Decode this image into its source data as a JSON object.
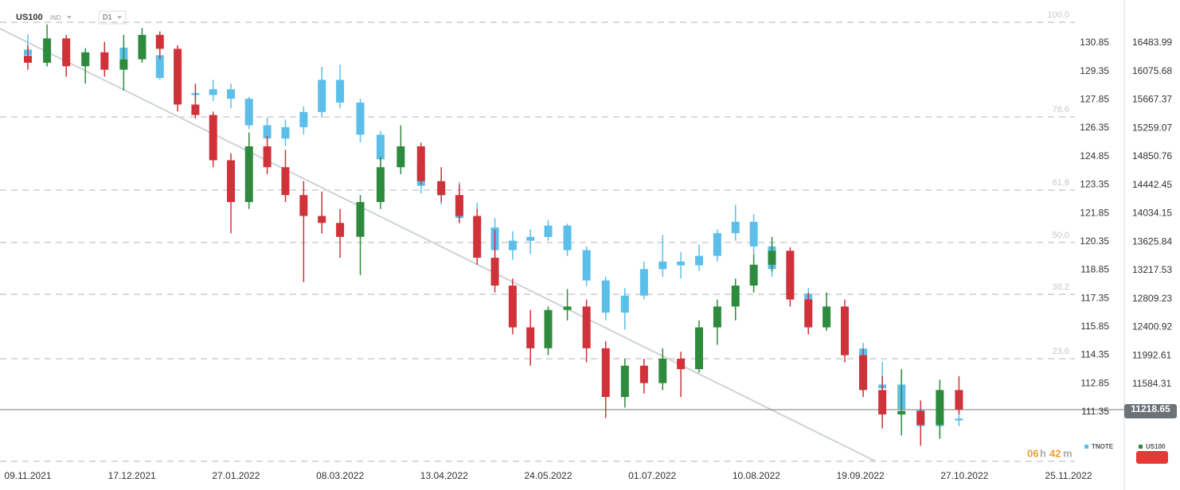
{
  "header": {
    "symbol": "US100",
    "market": "IND",
    "interval": "D1"
  },
  "chart_data": {
    "type": "candlestick",
    "x": [
      "09.11.2021",
      "16.11.2021",
      "23.11.2021",
      "30.11.2021",
      "07.12.2021",
      "14.12.2021",
      "21.12.2021",
      "28.12.2021",
      "04.01.2022",
      "11.01.2022",
      "18.01.2022",
      "25.01.2022",
      "01.02.2022",
      "08.02.2022",
      "15.02.2022",
      "22.02.2022",
      "01.03.2022",
      "08.03.2022",
      "15.03.2022",
      "22.03.2022",
      "29.03.2022",
      "05.04.2022",
      "12.04.2022",
      "19.04.2022",
      "26.04.2022",
      "03.05.2022",
      "10.05.2022",
      "17.05.2022",
      "24.05.2022",
      "31.05.2022",
      "07.06.2022",
      "14.06.2022",
      "21.06.2022",
      "28.06.2022",
      "05.07.2022",
      "12.07.2022",
      "19.07.2022",
      "26.07.2022",
      "02.08.2022",
      "09.08.2022",
      "16.08.2022",
      "23.08.2022",
      "30.08.2022",
      "06.09.2022",
      "13.09.2022",
      "20.09.2022",
      "27.09.2022",
      "04.10.2022",
      "11.10.2022",
      "18.10.2022",
      "25.10.2022"
    ],
    "xticks": [
      "09.11.2021",
      "17.12.2021",
      "27.01.2022",
      "08.03.2022",
      "13.04.2022",
      "24.05.2022",
      "01.07.2022",
      "10.08.2022",
      "19.09.2022",
      "27.10.2022",
      "25.11.2022"
    ],
    "ylim": [
      10362,
      17101
    ],
    "yticks": [
      16483.99,
      16075.68,
      15667.37,
      15259.07,
      14850.76,
      14442.45,
      14034.15,
      13625.84,
      13217.53,
      12809.23,
      12400.92,
      11992.61,
      11584.31
    ],
    "y2lim": [
      108.32,
      133.12
    ],
    "y2ticks": [
      130.85,
      129.35,
      127.85,
      126.35,
      124.85,
      123.35,
      121.85,
      120.35,
      118.85,
      117.35,
      115.85,
      114.35,
      112.85,
      111.35
    ],
    "last_price": 11218.65,
    "fib_levels": [
      {
        "value": 16781,
        "label": "100.0"
      },
      {
        "value": 15422,
        "label": "78.6"
      },
      {
        "value": 14371,
        "label": "61.8"
      },
      {
        "value": 13618,
        "label": "50.0"
      },
      {
        "value": 12875,
        "label": "38.2"
      },
      {
        "value": 11950,
        "label": "23.6"
      }
    ],
    "fib_base": 10477,
    "timer": [
      "06",
      "h",
      "42",
      "m"
    ],
    "series": [
      {
        "name": "TNOTE",
        "axis": "y2",
        "color": "#5bbfea",
        "open": [
          130.5,
          130.2,
          130.4,
          129.9,
          130.3,
          130.0,
          130.6,
          130.2,
          129.0,
          128.2,
          128.1,
          128.4,
          127.9,
          126.5,
          125.8,
          126.4,
          127.2,
          128.9,
          127.7,
          126.0,
          124.7,
          124.5,
          123.3,
          122.8,
          121.6,
          121.1,
          119.9,
          120.4,
          120.6,
          121.2,
          119.9,
          118.3,
          116.6,
          117.5,
          118.9,
          119.3,
          119.1,
          119.6,
          120.8,
          121.4,
          120.1,
          118.9,
          117.6,
          116.3,
          116.0,
          114.7,
          112.6,
          112.8,
          111.5,
          110.6,
          111.0
        ],
        "high": [
          131.3,
          130.8,
          130.9,
          130.6,
          130.9,
          131.0,
          130.9,
          130.4,
          129.2,
          128.6,
          128.9,
          128.7,
          128.0,
          126.9,
          126.8,
          127.5,
          129.6,
          129.7,
          127.9,
          126.2,
          125.6,
          124.7,
          123.9,
          123.5,
          122.4,
          121.6,
          120.9,
          121.0,
          121.5,
          121.3,
          120.1,
          118.5,
          117.9,
          119.3,
          120.7,
          119.8,
          120.2,
          121.0,
          122.3,
          121.8,
          120.4,
          119.3,
          117.9,
          117.1,
          116.3,
          115.0,
          114.0,
          113.1,
          111.9,
          111.3,
          112.1
        ],
        "low": [
          129.9,
          129.6,
          129.5,
          129.2,
          129.8,
          129.8,
          129.9,
          128.9,
          127.9,
          127.8,
          127.8,
          127.4,
          126.3,
          125.5,
          125.4,
          126.0,
          126.9,
          127.4,
          125.6,
          124.3,
          124.3,
          122.9,
          122.3,
          121.3,
          120.7,
          119.5,
          119.4,
          119.7,
          120.4,
          119.6,
          118.0,
          116.2,
          115.7,
          117.3,
          118.5,
          118.4,
          118.8,
          119.3,
          120.4,
          119.7,
          118.5,
          117.2,
          115.9,
          115.7,
          114.4,
          112.3,
          111.0,
          111.1,
          110.2,
          110.0,
          110.6
        ],
        "close": [
          130.2,
          130.4,
          129.9,
          130.3,
          130.0,
          130.6,
          130.2,
          129.0,
          128.2,
          128.1,
          128.4,
          127.9,
          126.5,
          125.8,
          126.4,
          127.2,
          128.9,
          127.7,
          126.0,
          124.7,
          124.5,
          123.3,
          122.8,
          121.6,
          121.1,
          119.9,
          120.4,
          120.6,
          121.2,
          119.9,
          118.3,
          116.6,
          117.5,
          118.9,
          119.3,
          119.1,
          119.6,
          120.8,
          121.4,
          120.1,
          118.9,
          117.6,
          116.3,
          116.0,
          114.7,
          112.6,
          112.8,
          111.5,
          110.6,
          111.0,
          110.9
        ]
      },
      {
        "name": "US100",
        "axis": "y",
        "color": "#2e8b3e",
        "up_color": "#2e8b3e",
        "down_color": "#d0323a",
        "open": [
          16300,
          16200,
          16550,
          16150,
          16350,
          16100,
          16250,
          16600,
          16400,
          15600,
          15450,
          14800,
          14200,
          15000,
          14700,
          14300,
          14000,
          13900,
          13700,
          14200,
          14700,
          15000,
          14500,
          14300,
          14000,
          13400,
          13000,
          12400,
          12100,
          12650,
          12700,
          12100,
          11400,
          11850,
          11600,
          11950,
          11800,
          12400,
          12700,
          13000,
          13300,
          13500,
          12800,
          12400,
          12700,
          12000,
          11500,
          11150,
          11200,
          11000,
          11500
        ],
        "high": [
          16450,
          16750,
          16600,
          16400,
          16500,
          16600,
          16700,
          16650,
          16450,
          15900,
          15500,
          14900,
          15200,
          15150,
          14950,
          14500,
          14350,
          14100,
          14300,
          14850,
          15300,
          15050,
          14700,
          14450,
          14100,
          13800,
          13100,
          12650,
          12700,
          12950,
          12800,
          12200,
          11950,
          11950,
          12100,
          12050,
          12500,
          12800,
          13100,
          13450,
          13700,
          13550,
          12900,
          12900,
          12800,
          12100,
          11700,
          11800,
          11350,
          11650,
          11700
        ],
        "low": [
          16100,
          16150,
          16000,
          15900,
          16000,
          15800,
          16200,
          16250,
          15500,
          15400,
          14700,
          13750,
          14100,
          14600,
          14200,
          13050,
          13750,
          13400,
          13150,
          14100,
          14600,
          14450,
          14200,
          13900,
          13300,
          12900,
          12300,
          11850,
          12000,
          12500,
          11900,
          11100,
          11250,
          11450,
          11500,
          11400,
          11750,
          12150,
          12500,
          12900,
          13200,
          12700,
          12300,
          12350,
          11900,
          11400,
          10950,
          10850,
          10700,
          10800,
          11150
        ],
        "close": [
          16200,
          16550,
          16150,
          16350,
          16100,
          16250,
          16600,
          16400,
          15600,
          15450,
          14800,
          14200,
          15000,
          14700,
          14300,
          14000,
          13900,
          13700,
          14200,
          14700,
          15000,
          14500,
          14300,
          14000,
          13400,
          13000,
          12400,
          12100,
          12650,
          12700,
          12100,
          11400,
          11850,
          11600,
          11950,
          11800,
          12400,
          12700,
          13000,
          13300,
          13500,
          12800,
          12400,
          12700,
          12000,
          11500,
          11150,
          11200,
          11000,
          11500,
          11220
        ]
      }
    ]
  }
}
